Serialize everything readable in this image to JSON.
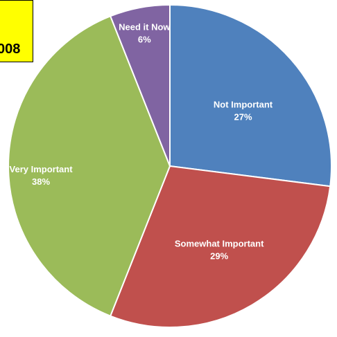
{
  "header": {
    "year_text": "008"
  },
  "colors": {
    "banner": "#ffff00",
    "not_important": "#4f81bd",
    "somewhat_important": "#c0504d",
    "very_important": "#9bbb59",
    "need_it_now": "#8064a2"
  },
  "chart_data": {
    "type": "pie",
    "title": "",
    "categories": [
      "Not Important",
      "Somewhat Important",
      "Very Important",
      "Need it Now"
    ],
    "values": [
      27,
      29,
      38,
      6
    ],
    "value_labels": [
      "27%",
      "29%",
      "38%",
      "6%"
    ],
    "colors": [
      "#4f81bd",
      "#c0504d",
      "#9bbb59",
      "#8064a2"
    ],
    "start_angle_deg": 0,
    "direction": "clockwise",
    "legend": "none",
    "data_labels": "inside"
  }
}
